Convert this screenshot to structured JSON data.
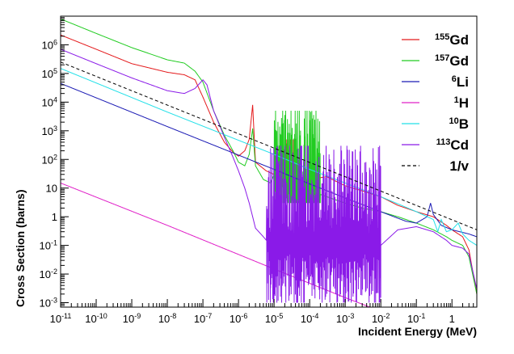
{
  "chart_data": {
    "type": "line",
    "xlabel": "Incident Energy (MeV)",
    "ylabel": "Cross Section (barns)",
    "x_scale": "log",
    "y_scale": "log",
    "xlim": [
      1e-11,
      5
    ],
    "ylim": [
      0.0007,
      10000000.0
    ],
    "grid": false,
    "legend_position": "top-right",
    "x_ticks": [
      {
        "value": 1e-11,
        "mant": "10",
        "exp": "-11"
      },
      {
        "value": 1e-10,
        "mant": "10",
        "exp": "-10"
      },
      {
        "value": 1e-09,
        "mant": "10",
        "exp": "-9"
      },
      {
        "value": 1e-08,
        "mant": "10",
        "exp": "-8"
      },
      {
        "value": 1e-07,
        "mant": "10",
        "exp": "-7"
      },
      {
        "value": 1e-06,
        "mant": "10",
        "exp": "-6"
      },
      {
        "value": 1e-05,
        "mant": "10",
        "exp": "-5"
      },
      {
        "value": 0.0001,
        "mant": "10",
        "exp": "-4"
      },
      {
        "value": 0.001,
        "mant": "10",
        "exp": "-3"
      },
      {
        "value": 0.01,
        "mant": "10",
        "exp": "-2"
      },
      {
        "value": 0.1,
        "mant": "10",
        "exp": "-1"
      },
      {
        "value": 1,
        "mant": "1",
        "exp": ""
      }
    ],
    "y_ticks": [
      {
        "value": 0.001,
        "mant": "10",
        "exp": "-3"
      },
      {
        "value": 0.01,
        "mant": "10",
        "exp": "-2"
      },
      {
        "value": 0.1,
        "mant": "10",
        "exp": "-1"
      },
      {
        "value": 1,
        "mant": "1",
        "exp": ""
      },
      {
        "value": 10,
        "mant": "10",
        "exp": ""
      },
      {
        "value": 100,
        "mant": "10",
        "exp": "2"
      },
      {
        "value": 1000,
        "mant": "10",
        "exp": "3"
      },
      {
        "value": 10000,
        "mant": "10",
        "exp": "4"
      },
      {
        "value": 100000,
        "mant": "10",
        "exp": "5"
      },
      {
        "value": 1000000,
        "mant": "10",
        "exp": "6"
      }
    ],
    "series": [
      {
        "name": "155Gd",
        "label_sup": "155",
        "label_main": "Gd",
        "color": "#e41a1c",
        "dashed": false,
        "points": [
          [
            1e-11,
            2200000.0
          ],
          [
            1e-10,
            700000.0
          ],
          [
            1e-09,
            220000.0
          ],
          [
            1e-08,
            110000.0
          ],
          [
            3e-08,
            90000.0
          ],
          [
            6e-08,
            60000.0
          ],
          [
            1e-07,
            15000.0
          ],
          [
            2e-07,
            2000.0
          ],
          [
            4e-07,
            400
          ],
          [
            7e-07,
            180
          ],
          [
            1e-06,
            130
          ],
          [
            1.5e-06,
            200
          ],
          [
            2e-06,
            500
          ],
          [
            2.5e-06,
            8000
          ],
          [
            3e-06,
            80
          ],
          [
            6e-06,
            40
          ],
          [
            1e-05,
            30
          ],
          [
            2e-05,
            50
          ],
          [
            3e-05,
            25
          ],
          [
            6e-05,
            15
          ],
          [
            0.0001,
            20
          ],
          [
            0.0003,
            25
          ],
          [
            0.001,
            12
          ],
          [
            0.003,
            8
          ],
          [
            0.01,
            5
          ],
          [
            0.03,
            2.5
          ],
          [
            0.1,
            1.5
          ],
          [
            0.3,
            1
          ],
          [
            0.7,
            0.5
          ],
          [
            1,
            0.35
          ],
          [
            2,
            0.2
          ],
          [
            3,
            0.07
          ],
          [
            5,
            0.002
          ]
        ],
        "resonances": {
          "x_range": [
            1e-05,
            4e-05
          ],
          "count": 12,
          "low": 15,
          "high": 500
        }
      },
      {
        "name": "157Gd",
        "label_sup": "157",
        "label_main": "Gd",
        "color": "#22cc22",
        "dashed": false,
        "points": [
          [
            1e-11,
            8000000.0
          ],
          [
            1e-10,
            2500000.0
          ],
          [
            1e-09,
            800000.0
          ],
          [
            1e-08,
            300000.0
          ],
          [
            3e-08,
            230000.0
          ],
          [
            6e-08,
            120000.0
          ],
          [
            1e-07,
            50000.0
          ],
          [
            2e-07,
            5000.0
          ],
          [
            4e-07,
            700
          ],
          [
            7e-07,
            200
          ],
          [
            1e-06,
            80
          ],
          [
            1.5e-06,
            60
          ],
          [
            2e-06,
            150
          ],
          [
            2.5e-06,
            1200
          ],
          [
            3e-06,
            60
          ],
          [
            5e-06,
            20
          ],
          [
            8e-06,
            15
          ],
          [
            1e-05,
            30
          ],
          [
            2e-05,
            20
          ],
          [
            4e-05,
            8
          ],
          [
            7e-05,
            5
          ],
          [
            0.0001,
            10
          ],
          [
            0.0002,
            6
          ],
          [
            0.0005,
            4
          ],
          [
            0.001,
            3
          ],
          [
            0.003,
            2
          ],
          [
            0.01,
            1.5
          ],
          [
            0.03,
            1
          ],
          [
            0.1,
            0.6
          ],
          [
            0.3,
            0.35
          ],
          [
            0.7,
            0.2
          ],
          [
            1,
            0.15
          ],
          [
            2,
            0.1
          ],
          [
            3,
            0.04
          ],
          [
            5,
            0.002
          ]
        ],
        "resonances": {
          "x_range": [
            1e-05,
            0.0002
          ],
          "count": 28,
          "low": 3,
          "high": 5000
        }
      },
      {
        "name": "6Li",
        "label_sup": "6",
        "label_main": "Li",
        "color": "#1a1ab4",
        "dashed": false,
        "points": [
          [
            1e-11,
            45000.0
          ],
          [
            1e-08,
            1400.0
          ],
          [
            1e-05,
            45
          ],
          [
            0.0001,
            14
          ],
          [
            0.001,
            4.5
          ],
          [
            0.01,
            1.5
          ],
          [
            0.05,
            0.7
          ],
          [
            0.1,
            0.6
          ],
          [
            0.2,
            1
          ],
          [
            0.25,
            3
          ],
          [
            0.3,
            1.2
          ],
          [
            0.5,
            0.5
          ],
          [
            1,
            0.35
          ],
          [
            3,
            0.25
          ],
          [
            5,
            0.2
          ]
        ],
        "resonances": null
      },
      {
        "name": "1H",
        "label_sup": "1",
        "label_main": "H",
        "color": "#e020c8",
        "dashed": false,
        "points": [
          [
            1e-11,
            15
          ],
          [
            1e-08,
            0.5
          ],
          [
            1e-05,
            0.015
          ],
          [
            0.001,
            0.0015
          ],
          [
            0.01,
            0.0005
          ]
        ],
        "resonances": null
      },
      {
        "name": "10B",
        "label_sup": "10",
        "label_main": "B",
        "color": "#22e0e8",
        "dashed": false,
        "points": [
          [
            1e-11,
            150000.0
          ],
          [
            1e-08,
            4500.0
          ],
          [
            1e-05,
            150
          ],
          [
            0.0001,
            45
          ],
          [
            0.001,
            15
          ],
          [
            0.01,
            5
          ],
          [
            0.1,
            1.5
          ],
          [
            0.3,
            0.8
          ],
          [
            0.4,
            0.3
          ],
          [
            0.5,
            0.8
          ],
          [
            0.7,
            0.3
          ],
          [
            1,
            0.35
          ],
          [
            1.5,
            0.6
          ],
          [
            2,
            0.25
          ],
          [
            3,
            0.15
          ],
          [
            5,
            0.1
          ]
        ],
        "resonances": null
      },
      {
        "name": "113Cd",
        "label_sup": "113",
        "label_main": "Cd",
        "color": "#8a1ae8",
        "dashed": false,
        "points": [
          [
            1e-11,
            700000.0
          ],
          [
            1e-10,
            220000.0
          ],
          [
            1e-09,
            70000.0
          ],
          [
            1e-08,
            25000.0
          ],
          [
            3e-08,
            20000.0
          ],
          [
            6e-08,
            30000.0
          ],
          [
            1e-07,
            60000.0
          ],
          [
            1.3e-07,
            40000.0
          ],
          [
            2e-07,
            5000.0
          ],
          [
            4e-07,
            600
          ],
          [
            7e-07,
            120
          ],
          [
            1e-06,
            40
          ],
          [
            1.5e-06,
            10
          ],
          [
            2e-06,
            3
          ],
          [
            2.5e-06,
            1
          ],
          [
            3e-06,
            0.4
          ],
          [
            5e-06,
            0.2
          ],
          [
            8e-06,
            0.1
          ],
          [
            1e-05,
            0.1
          ],
          [
            2e-05,
            0.1
          ],
          [
            0.0001,
            0.1
          ],
          [
            0.001,
            0.1
          ],
          [
            0.01,
            0.1
          ],
          [
            0.03,
            0.35
          ],
          [
            0.1,
            0.45
          ],
          [
            0.3,
            0.3
          ],
          [
            0.7,
            0.15
          ],
          [
            1,
            0.1
          ],
          [
            2,
            0.08
          ],
          [
            3,
            0.05
          ],
          [
            5,
            0.003
          ]
        ],
        "resonances": {
          "x_range": [
            6e-06,
            0.01
          ],
          "count": 140,
          "low": 0.001,
          "high": 300
        }
      },
      {
        "name": "1/v",
        "label_sup": "",
        "label_main": "1/v",
        "color": "#000000",
        "dashed": true,
        "points": [
          [
            1e-11,
            250000.0
          ],
          [
            5,
            0.35
          ]
        ],
        "resonances": null
      }
    ]
  }
}
